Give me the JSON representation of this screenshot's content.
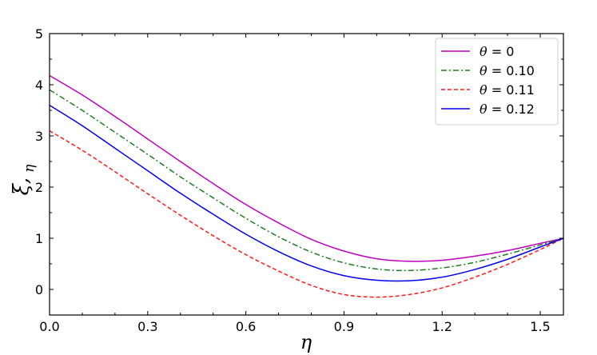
{
  "chart_data": {
    "type": "line",
    "title": "",
    "xlabel": "η",
    "ylabel_main": "ξ,",
    "ylabel_sub": "η",
    "xlim": [
      0,
      1.5708
    ],
    "ylim": [
      -0.5,
      5
    ],
    "x_ticks": [
      0.0,
      0.3,
      0.6,
      0.9,
      1.2,
      1.5
    ],
    "x_tick_labels": [
      "0.0",
      "0.3",
      "0.6",
      "0.9",
      "1.2",
      "1.5"
    ],
    "y_ticks": [
      0,
      1,
      2,
      3,
      4,
      5
    ],
    "y_tick_labels": [
      "0",
      "1",
      "2",
      "3",
      "4",
      "5"
    ],
    "grid": false,
    "legend_position": "top-right",
    "x": [
      0,
      0.1,
      0.2,
      0.3,
      0.4,
      0.5,
      0.6,
      0.7,
      0.8,
      0.9,
      1.0,
      1.1,
      1.2,
      1.3,
      1.4,
      1.5,
      1.5708
    ],
    "series": [
      {
        "name": "θ = 0",
        "legend_symbol": "θ",
        "legend_rest": " = 0",
        "color": "#bf00bf",
        "dash": "solid",
        "values": [
          4.18,
          3.8,
          3.38,
          2.94,
          2.5,
          2.07,
          1.66,
          1.3,
          0.98,
          0.75,
          0.6,
          0.55,
          0.57,
          0.65,
          0.76,
          0.9,
          1.0
        ]
      },
      {
        "name": "θ = 0.10",
        "legend_symbol": "θ",
        "legend_rest": " = 0.10",
        "color": "#1a7f1a",
        "dash": "dashdot",
        "values": [
          3.9,
          3.5,
          3.07,
          2.64,
          2.2,
          1.79,
          1.39,
          1.03,
          0.73,
          0.52,
          0.4,
          0.37,
          0.42,
          0.53,
          0.69,
          0.87,
          1.0
        ]
      },
      {
        "name": "θ = 0.11",
        "legend_symbol": "θ",
        "legend_rest": " = 0.11",
        "color": "#ff1a1a",
        "dash": "dashed",
        "values": [
          3.1,
          2.72,
          2.3,
          1.87,
          1.45,
          1.05,
          0.68,
          0.36,
          0.08,
          -0.1,
          -0.15,
          -0.1,
          0.03,
          0.24,
          0.49,
          0.78,
          1.0
        ]
      },
      {
        "name": "θ = 0.12",
        "legend_symbol": "θ",
        "legend_rest": "  = 0.12",
        "color": "#0000ee",
        "dash": "solid",
        "values": [
          3.6,
          3.2,
          2.76,
          2.32,
          1.88,
          1.47,
          1.08,
          0.74,
          0.46,
          0.27,
          0.18,
          0.17,
          0.24,
          0.39,
          0.59,
          0.83,
          1.0
        ]
      }
    ]
  }
}
